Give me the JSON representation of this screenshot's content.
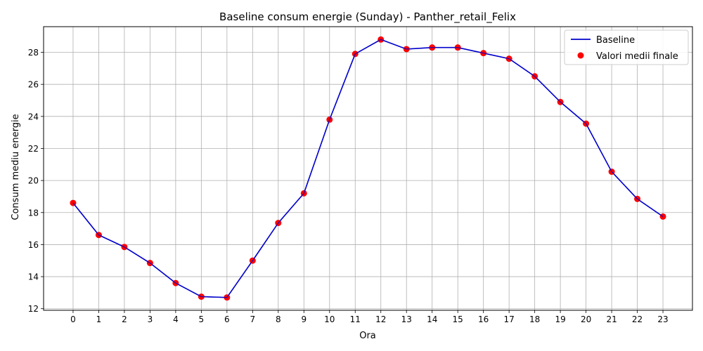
{
  "chart_data": {
    "type": "line",
    "title": "Baseline consum energie (Sunday) - Panther_retail_Felix",
    "xlabel": "Ora",
    "ylabel": "Consum mediu energie",
    "x": [
      0,
      1,
      2,
      3,
      4,
      5,
      6,
      7,
      8,
      9,
      10,
      11,
      12,
      13,
      14,
      15,
      16,
      17,
      18,
      19,
      20,
      21,
      22,
      23
    ],
    "x_tick_labels": [
      "0",
      "1",
      "2",
      "3",
      "4",
      "5",
      "6",
      "7",
      "8",
      "9",
      "10",
      "11",
      "12",
      "13",
      "14",
      "15",
      "16",
      "17",
      "18",
      "19",
      "20",
      "21",
      "22",
      "23"
    ],
    "y_ticks": [
      12,
      14,
      16,
      18,
      20,
      22,
      24,
      26,
      28
    ],
    "y_tick_labels": [
      "12",
      "14",
      "16",
      "18",
      "20",
      "22",
      "24",
      "26",
      "28"
    ],
    "xlim": [
      -1.15,
      24.15
    ],
    "ylim": [
      11.9,
      29.6
    ],
    "grid": true,
    "legend_position": "top-right",
    "series": [
      {
        "name": "Baseline",
        "kind": "line",
        "color": "#0000cc",
        "values": [
          18.6,
          16.6,
          15.85,
          14.85,
          13.6,
          12.75,
          12.7,
          15.0,
          17.35,
          19.2,
          23.8,
          27.9,
          28.8,
          28.2,
          28.3,
          28.3,
          27.95,
          27.6,
          26.5,
          24.9,
          23.55,
          20.55,
          18.85,
          17.75
        ]
      },
      {
        "name": "Valori medii finale",
        "kind": "scatter",
        "color": "#ff0000",
        "values": [
          18.6,
          16.6,
          15.85,
          14.85,
          13.6,
          12.75,
          12.7,
          15.0,
          17.35,
          19.2,
          23.8,
          27.9,
          28.8,
          28.2,
          28.3,
          28.3,
          27.95,
          27.6,
          26.5,
          24.9,
          23.55,
          20.55,
          18.85,
          17.75
        ]
      }
    ]
  }
}
